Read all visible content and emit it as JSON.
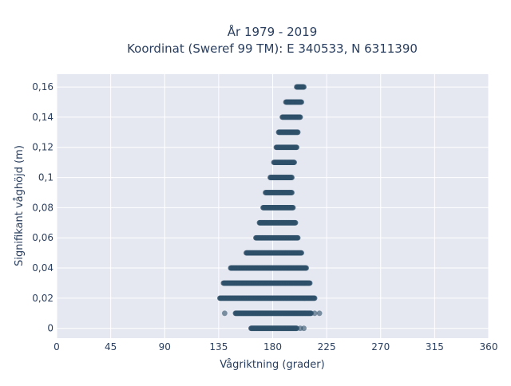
{
  "chart_data": {
    "type": "scatter",
    "title": [
      "År 1979 - 2019",
      "Koordinat (Sweref 99 TM): E 340533, N 6311390"
    ],
    "xlabel": "Vågriktning (grader)",
    "ylabel": "Signifikant våghöjd (m)",
    "xlim": [
      0,
      360
    ],
    "ylim": [
      -0.0065,
      0.1685
    ],
    "x_ticks": [
      "0",
      "45",
      "90",
      "135",
      "180",
      "225",
      "270",
      "315",
      "360"
    ],
    "y_ticks": [
      "0",
      "0,02",
      "0,04",
      "0,06",
      "0,08",
      "0,1",
      "0,12",
      "0,14",
      "0,16"
    ],
    "grid": true,
    "plot_background": "#e5e8f1",
    "marker_color": "#2f5069",
    "series": [
      {
        "bands": [
          {
            "y": 0.0,
            "x": [
              162,
              200
            ],
            "sparse": [
              203,
              206
            ]
          },
          {
            "y": 0.01,
            "x": [
              149,
              212
            ],
            "sparse": [
              140,
              215,
              219
            ]
          },
          {
            "y": 0.02,
            "x": [
              136,
              215
            ]
          },
          {
            "y": 0.03,
            "x": [
              139,
              211
            ]
          },
          {
            "y": 0.04,
            "x": [
              145,
              208
            ]
          },
          {
            "y": 0.05,
            "x": [
              158,
              204
            ]
          },
          {
            "y": 0.06,
            "x": [
              166,
              201
            ]
          },
          {
            "y": 0.07,
            "x": [
              169,
              199
            ]
          },
          {
            "y": 0.08,
            "x": [
              172,
              197
            ]
          },
          {
            "y": 0.09,
            "x": [
              174,
              196
            ]
          },
          {
            "y": 0.1,
            "x": [
              178,
              196
            ]
          },
          {
            "y": 0.11,
            "x": [
              181,
              198
            ]
          },
          {
            "y": 0.12,
            "x": [
              183,
              200
            ]
          },
          {
            "y": 0.13,
            "x": [
              185,
              201
            ]
          },
          {
            "y": 0.14,
            "x": [
              188,
              203
            ]
          },
          {
            "y": 0.15,
            "x": [
              191,
              204
            ]
          },
          {
            "y": 0.16,
            "x": [
              200,
              206
            ]
          }
        ]
      }
    ]
  }
}
